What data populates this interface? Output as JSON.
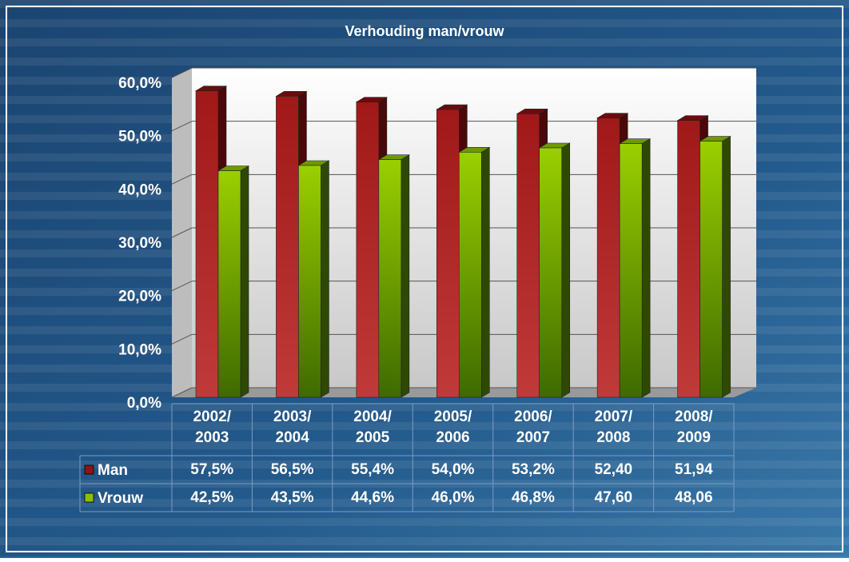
{
  "chart_data": {
    "type": "bar",
    "title": "Verhouding man/vrouw",
    "categories": [
      "2002/\n2003",
      "2003/\n2004",
      "2004/\n2005",
      "2005/\n2006",
      "2006/\n2007",
      "2007/\n2008",
      "2008/\n2009"
    ],
    "series": [
      {
        "name": "Man",
        "color": "#8e1414",
        "values": [
          57.5,
          56.5,
          55.4,
          54.0,
          53.2,
          52.4,
          51.94
        ],
        "value_labels": [
          "57,5%",
          "56,5%",
          "55,4%",
          "54,0%",
          "53,2%",
          "52,40",
          "51,94"
        ]
      },
      {
        "name": "Vrouw",
        "color": "#8cc000",
        "values": [
          42.5,
          43.5,
          44.6,
          46.0,
          46.8,
          47.6,
          48.06
        ],
        "value_labels": [
          "42,5%",
          "43,5%",
          "44,6%",
          "46,0%",
          "46,8%",
          "47,60",
          "48,06"
        ]
      }
    ],
    "ylim": [
      0,
      60
    ],
    "yticks": [
      {
        "value": 0,
        "label": "0,0%"
      },
      {
        "value": 10,
        "label": "10,0%"
      },
      {
        "value": 20,
        "label": "20,0%"
      },
      {
        "value": 30,
        "label": "30,0%"
      },
      {
        "value": 40,
        "label": "40,0%"
      },
      {
        "value": 50,
        "label": "50,0%"
      },
      {
        "value": 60,
        "label": "60,0%"
      }
    ],
    "grid": true,
    "legend": "table"
  }
}
